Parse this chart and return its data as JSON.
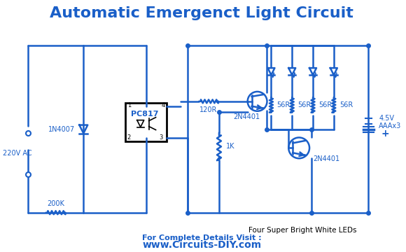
{
  "title": "Automatic Emergenct Light Circuit",
  "title_color": "#1a5fc8",
  "title_fontsize": 16,
  "line_color": "#1a5fc8",
  "text_color": "#1a5fc8",
  "bg_color": "#ffffff",
  "footer_bold": "For Complete Details Visit :",
  "footer_url": "www.Circuits-DIY.com",
  "label_220v": "220V AC",
  "label_200k": "200K",
  "label_1n4007": "1N4007",
  "label_pc817": "PC817",
  "label_120r": "120R",
  "label_2n4401_bot": "2N4401",
  "label_1k": "1K",
  "label_2n4401_top": "2N4401",
  "label_56r": "56R",
  "label_4leds": "Four Super Bright White LEDs",
  "label_battery": "4.5V\nAAAx3"
}
